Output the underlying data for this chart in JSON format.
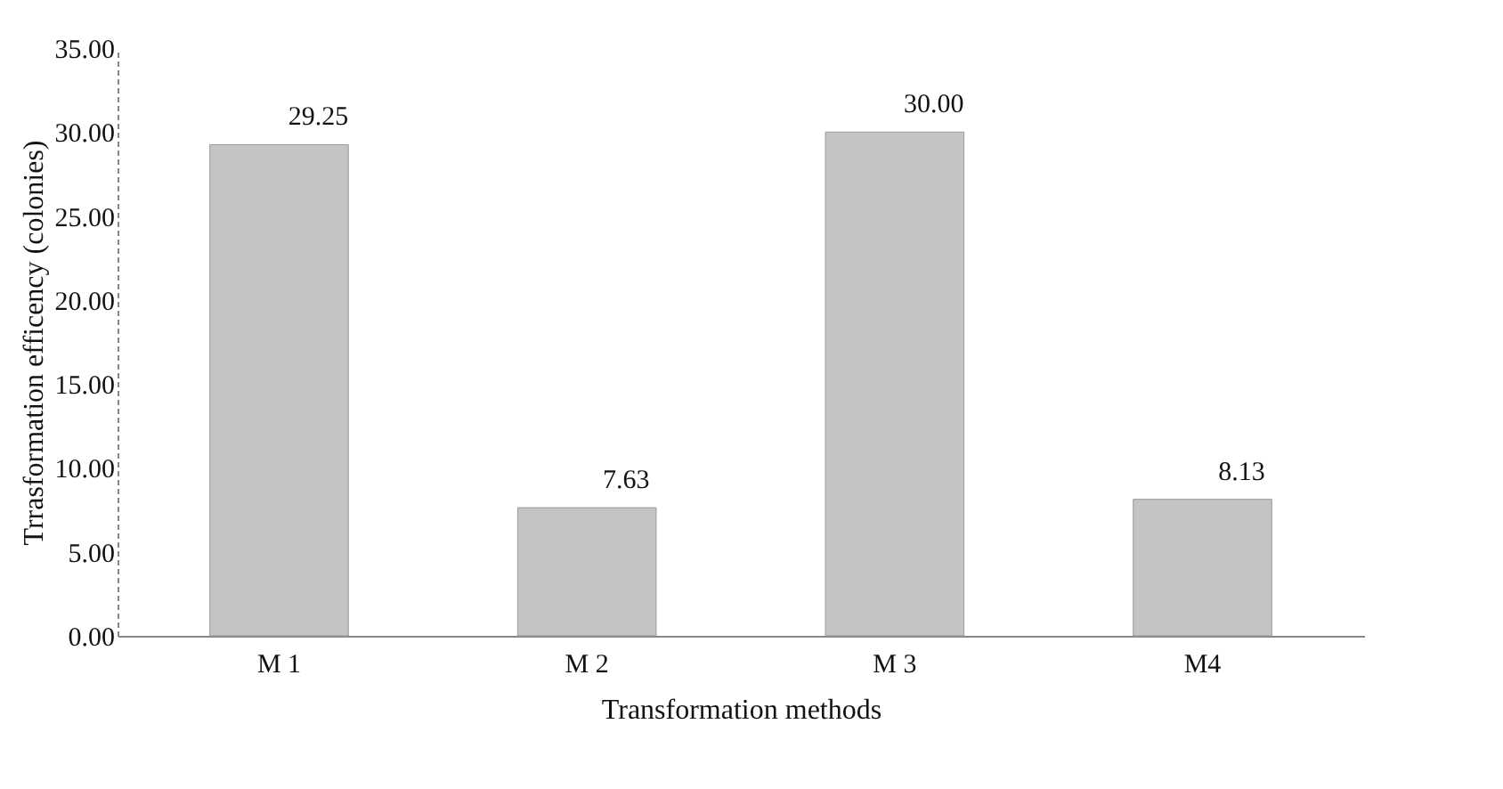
{
  "chart_data": {
    "type": "bar",
    "xlabel": "Transformation methods",
    "ylabel": "Trrasformation efficency (colonies)",
    "categories": [
      "M 1",
      "M 2",
      "M 3",
      "M4"
    ],
    "values": [
      29.25,
      7.63,
      30.0,
      8.13
    ],
    "value_labels": [
      "29.25",
      "7.63",
      "30.00",
      "8.13"
    ],
    "color": "#c4c4c4",
    "ylim": [
      0,
      35
    ],
    "yticks": [
      {
        "value": 0,
        "label": "0.00"
      },
      {
        "value": 5,
        "label": "5.00"
      },
      {
        "value": 10,
        "label": "10.00"
      },
      {
        "value": 15,
        "label": "15.00"
      },
      {
        "value": 20,
        "label": "20.00"
      },
      {
        "value": 25,
        "label": "25.00"
      },
      {
        "value": 30,
        "label": "30.00"
      },
      {
        "value": 35,
        "label": "35.00"
      }
    ],
    "grid": false
  }
}
